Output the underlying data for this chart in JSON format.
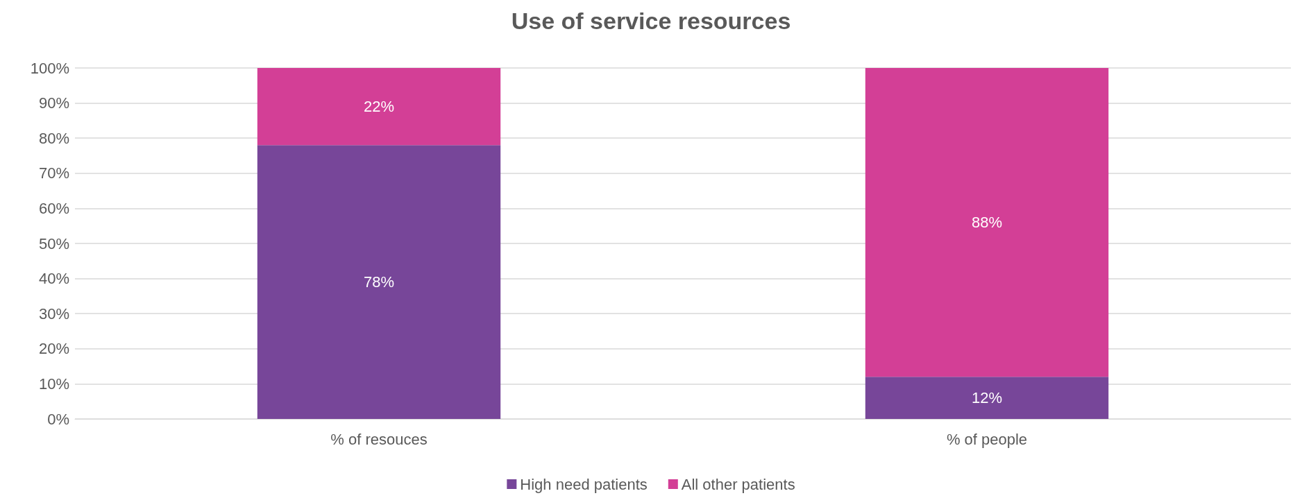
{
  "chart_data": {
    "type": "bar",
    "title": "Use of service resources",
    "stacked": true,
    "categories": [
      "% of resouces",
      "% of people"
    ],
    "series": [
      {
        "name": "High need patients",
        "color": "#774699",
        "values": [
          78,
          12
        ],
        "value_labels": [
          "78%",
          "12%"
        ]
      },
      {
        "name": "All other patients",
        "color": "#d33f96",
        "values": [
          22,
          88
        ],
        "value_labels": [
          "22%",
          "88%"
        ]
      }
    ],
    "ylim": [
      0,
      100
    ],
    "yticks": [
      {
        "value": 0,
        "label": "0%"
      },
      {
        "value": 10,
        "label": "10%"
      },
      {
        "value": 20,
        "label": "20%"
      },
      {
        "value": 30,
        "label": "30%"
      },
      {
        "value": 40,
        "label": "40%"
      },
      {
        "value": 50,
        "label": "50%"
      },
      {
        "value": 60,
        "label": "60%"
      },
      {
        "value": 70,
        "label": "70%"
      },
      {
        "value": 80,
        "label": "80%"
      },
      {
        "value": 90,
        "label": "90%"
      },
      {
        "value": 100,
        "label": "100%"
      }
    ],
    "grid": "y",
    "legend": "bottom"
  }
}
